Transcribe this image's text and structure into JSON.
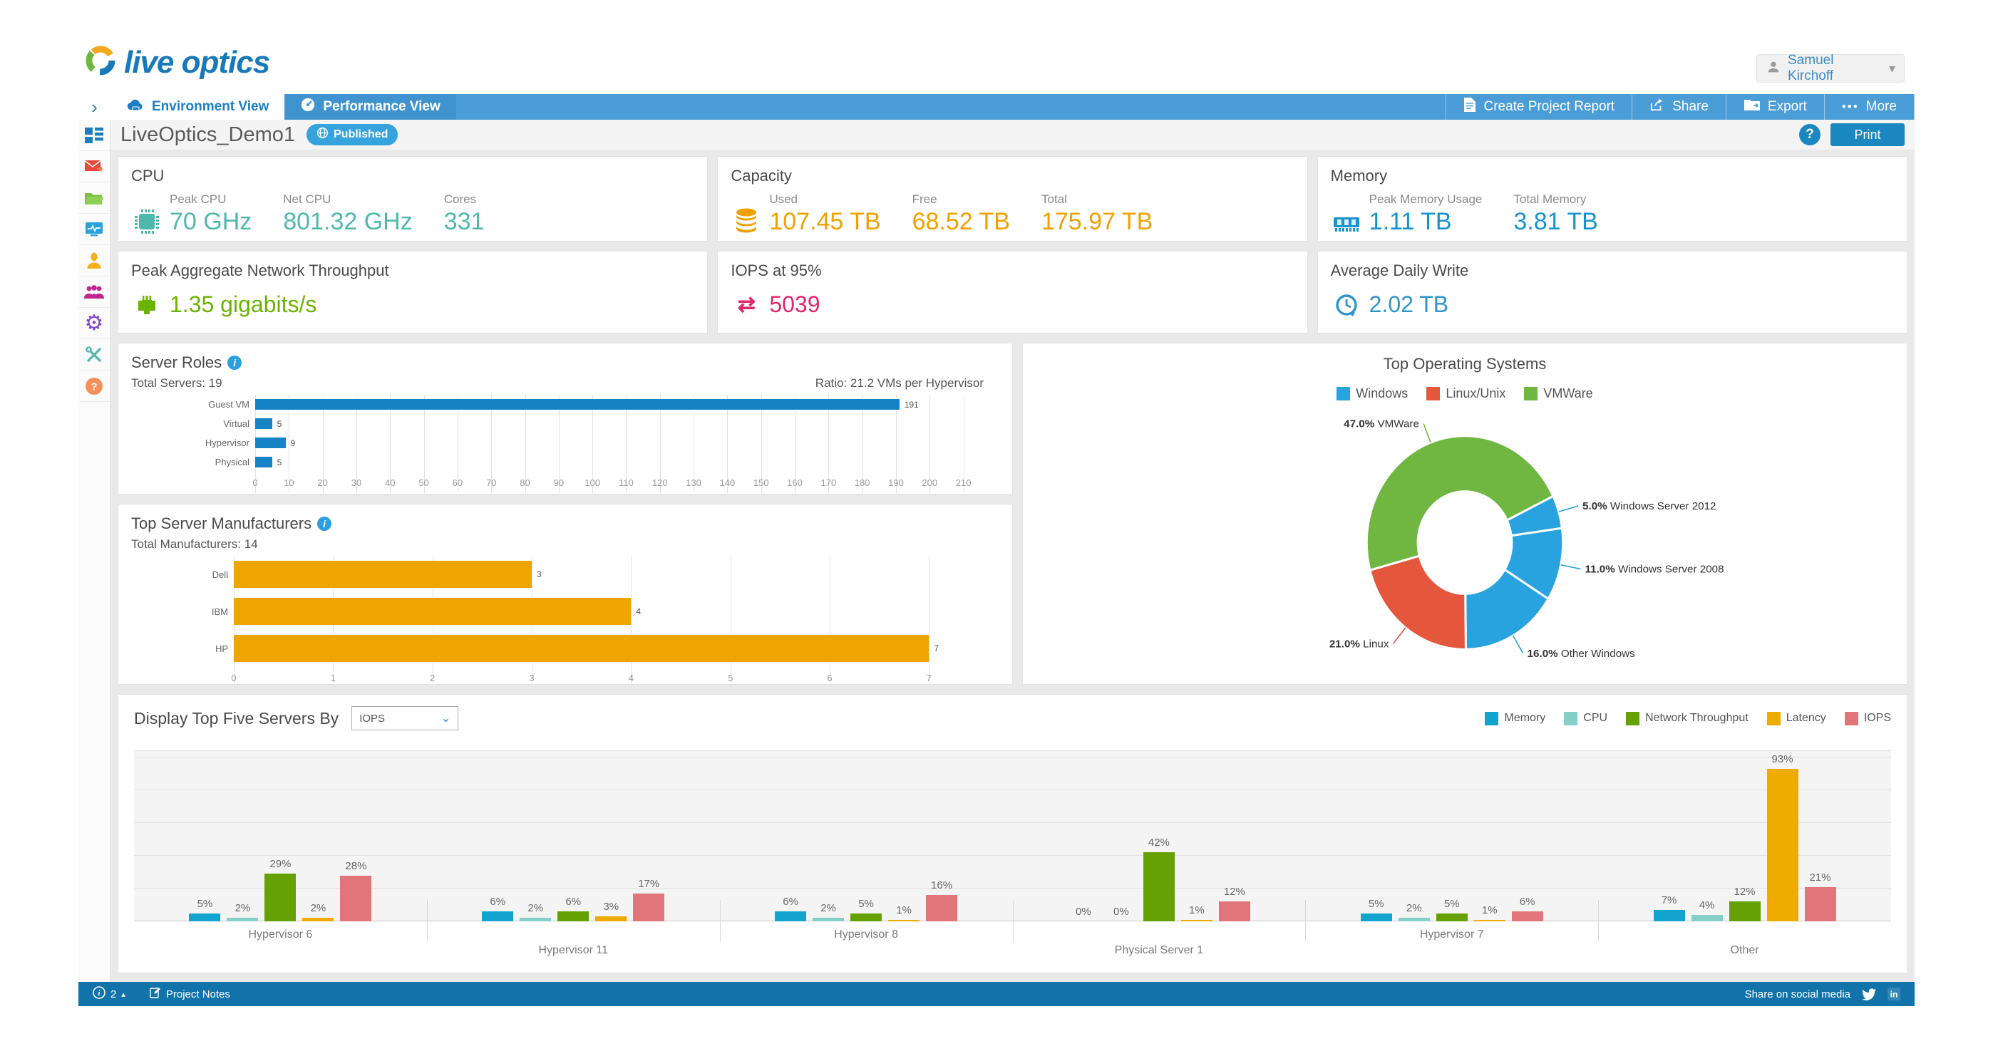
{
  "header": {
    "logo_text": "live optics",
    "user_name": "Samuel Kirchoff"
  },
  "nav": {
    "tabs": [
      {
        "label": "Environment View"
      },
      {
        "label": "Performance View"
      }
    ],
    "actions": [
      {
        "label": "Create Project Report"
      },
      {
        "label": "Share"
      },
      {
        "label": "Export"
      },
      {
        "label": "More"
      }
    ]
  },
  "title_bar": {
    "project_name": "LiveOptics_Demo1",
    "status_badge": "Published",
    "print_label": "Print"
  },
  "summary_cards": [
    {
      "title": "CPU",
      "color": "#4FB8AC",
      "icon": "cpu",
      "metrics": [
        {
          "label": "Peak CPU",
          "value": "70 GHz"
        },
        {
          "label": "Net CPU",
          "value": "801.32 GHz"
        },
        {
          "label": "Cores",
          "value": "331"
        }
      ]
    },
    {
      "title": "Capacity",
      "color": "#EFA100",
      "icon": "db",
      "metrics": [
        {
          "label": "Used",
          "value": "107.45 TB"
        },
        {
          "label": "Free",
          "value": "68.52 TB"
        },
        {
          "label": "Total",
          "value": "175.97 TB"
        }
      ]
    },
    {
      "title": "Memory",
      "color": "#1793CE",
      "icon": "ram",
      "metrics": [
        {
          "label": "Peak Memory Usage",
          "value": "1.11 TB"
        },
        {
          "label": "Total Memory",
          "value": "3.81 TB"
        }
      ]
    },
    {
      "title": "Peak Aggregate Network Throughput",
      "color": "#6CB200",
      "icon": "eth",
      "metrics": [
        {
          "label": "",
          "value": "1.35 gigabits/s"
        }
      ]
    },
    {
      "title": "IOPS at 95%",
      "color": "#E3256B",
      "icon": "swap",
      "metrics": [
        {
          "label": "",
          "value": "5039"
        }
      ]
    },
    {
      "title": "Average Daily Write",
      "color": "#2D96CC",
      "icon": "clockw",
      "metrics": [
        {
          "label": "",
          "value": "2.02 TB"
        }
      ]
    }
  ],
  "chart_data": [
    {
      "id": "server_roles",
      "type": "bar",
      "orientation": "horizontal",
      "title": "Server Roles",
      "subtitle_left": "Total Servers: 19",
      "subtitle_right": "Ratio: 21.2 VMs per Hypervisor",
      "categories": [
        "Guest VM",
        "Virtual",
        "Hypervisor",
        "Physical"
      ],
      "values": [
        191,
        5,
        9,
        5
      ],
      "xlim": [
        0,
        210
      ],
      "xtick_step": 10,
      "xmax_display": 216,
      "grid": true,
      "bar_color": "#1583C4"
    },
    {
      "id": "manufacturers",
      "type": "bar",
      "orientation": "horizontal",
      "title": "Top Server Manufacturers",
      "subtitle_left": "Total Manufacturers: 14",
      "categories": [
        "Dell",
        "IBM",
        "HP"
      ],
      "values": [
        3,
        4,
        7
      ],
      "xlim": [
        0,
        7
      ],
      "xtick_step": 1,
      "xmax_display": 7.55,
      "grid": true,
      "bar_color": "#EFA500"
    },
    {
      "id": "top_os",
      "type": "pie",
      "title": "Top Operating Systems",
      "donut": true,
      "legend": [
        {
          "label": "Windows",
          "color": "#29A2E0"
        },
        {
          "label": "Linux/Unix",
          "color": "#E4573D"
        },
        {
          "label": "VMWare",
          "color": "#70B742"
        }
      ],
      "start_angle_deg": 255,
      "slices": [
        {
          "label": "VMWare",
          "pct": 47.0,
          "color": "#70B742"
        },
        {
          "label": "Windows Server 2012",
          "pct": 5.0,
          "color": "#29A2E0"
        },
        {
          "label": "Windows Server 2008",
          "pct": 11.0,
          "color": "#29A2E0"
        },
        {
          "label": "Other Windows",
          "pct": 16.0,
          "color": "#29A2E0"
        },
        {
          "label": "Linux",
          "pct": 21.0,
          "color": "#E4573D"
        }
      ]
    },
    {
      "id": "top5_servers",
      "type": "bar",
      "grouped": true,
      "unit": "%",
      "control_label": "Display Top Five Servers By",
      "dropdown_value": "IOPS",
      "categories": [
        "Hypervisor 6",
        "Hypervisor 11",
        "Hypervisor 8",
        "Physical Server 1",
        "Hypervisor 7",
        "Other"
      ],
      "series": [
        {
          "label": "Memory",
          "color": "#13A3CF"
        },
        {
          "label": "CPU",
          "color": "#86CEC8"
        },
        {
          "label": "Network Throughput",
          "color": "#66A103"
        },
        {
          "label": "Latency",
          "color": "#F0AB00"
        },
        {
          "label": "IOPS",
          "color": "#E2757A"
        }
      ],
      "values": [
        [
          5,
          2,
          29,
          2,
          28
        ],
        [
          6,
          2,
          6,
          3,
          17
        ],
        [
          6,
          2,
          5,
          1,
          16
        ],
        [
          0,
          0,
          42,
          1,
          12
        ],
        [
          5,
          2,
          5,
          1,
          6
        ],
        [
          7,
          4,
          12,
          93,
          21
        ]
      ],
      "ylim": [
        0,
        100
      ],
      "grid": true,
      "legend_position": "top-right"
    }
  ],
  "footer": {
    "notes_count": "2",
    "project_notes_label": "Project Notes",
    "share_label": "Share on social media"
  }
}
